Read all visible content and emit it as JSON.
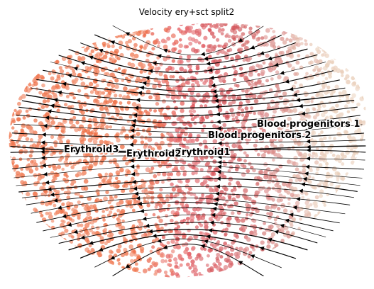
{
  "chart_data": {
    "type": "scatter",
    "title": "Velocity ery+sct split2",
    "xlabel": "",
    "ylabel": "",
    "axes_visible": false,
    "grid": false,
    "legend": "none (cluster labels placed on plot)",
    "overlay": "RNA velocity streamlines, arrows flowing right-to-left",
    "clusters": [
      {
        "name": "Blood progenitors 1",
        "color": "#e8cbb5"
      },
      {
        "name": "Blood progenitors 2",
        "color": "#d98a86"
      },
      {
        "name": "Erythroid1",
        "color": "#cf4a4f"
      },
      {
        "name": "Erythroid2",
        "color": "#e1555c"
      },
      {
        "name": "Erythroid3",
        "color": "#ee6a3f"
      }
    ]
  }
}
